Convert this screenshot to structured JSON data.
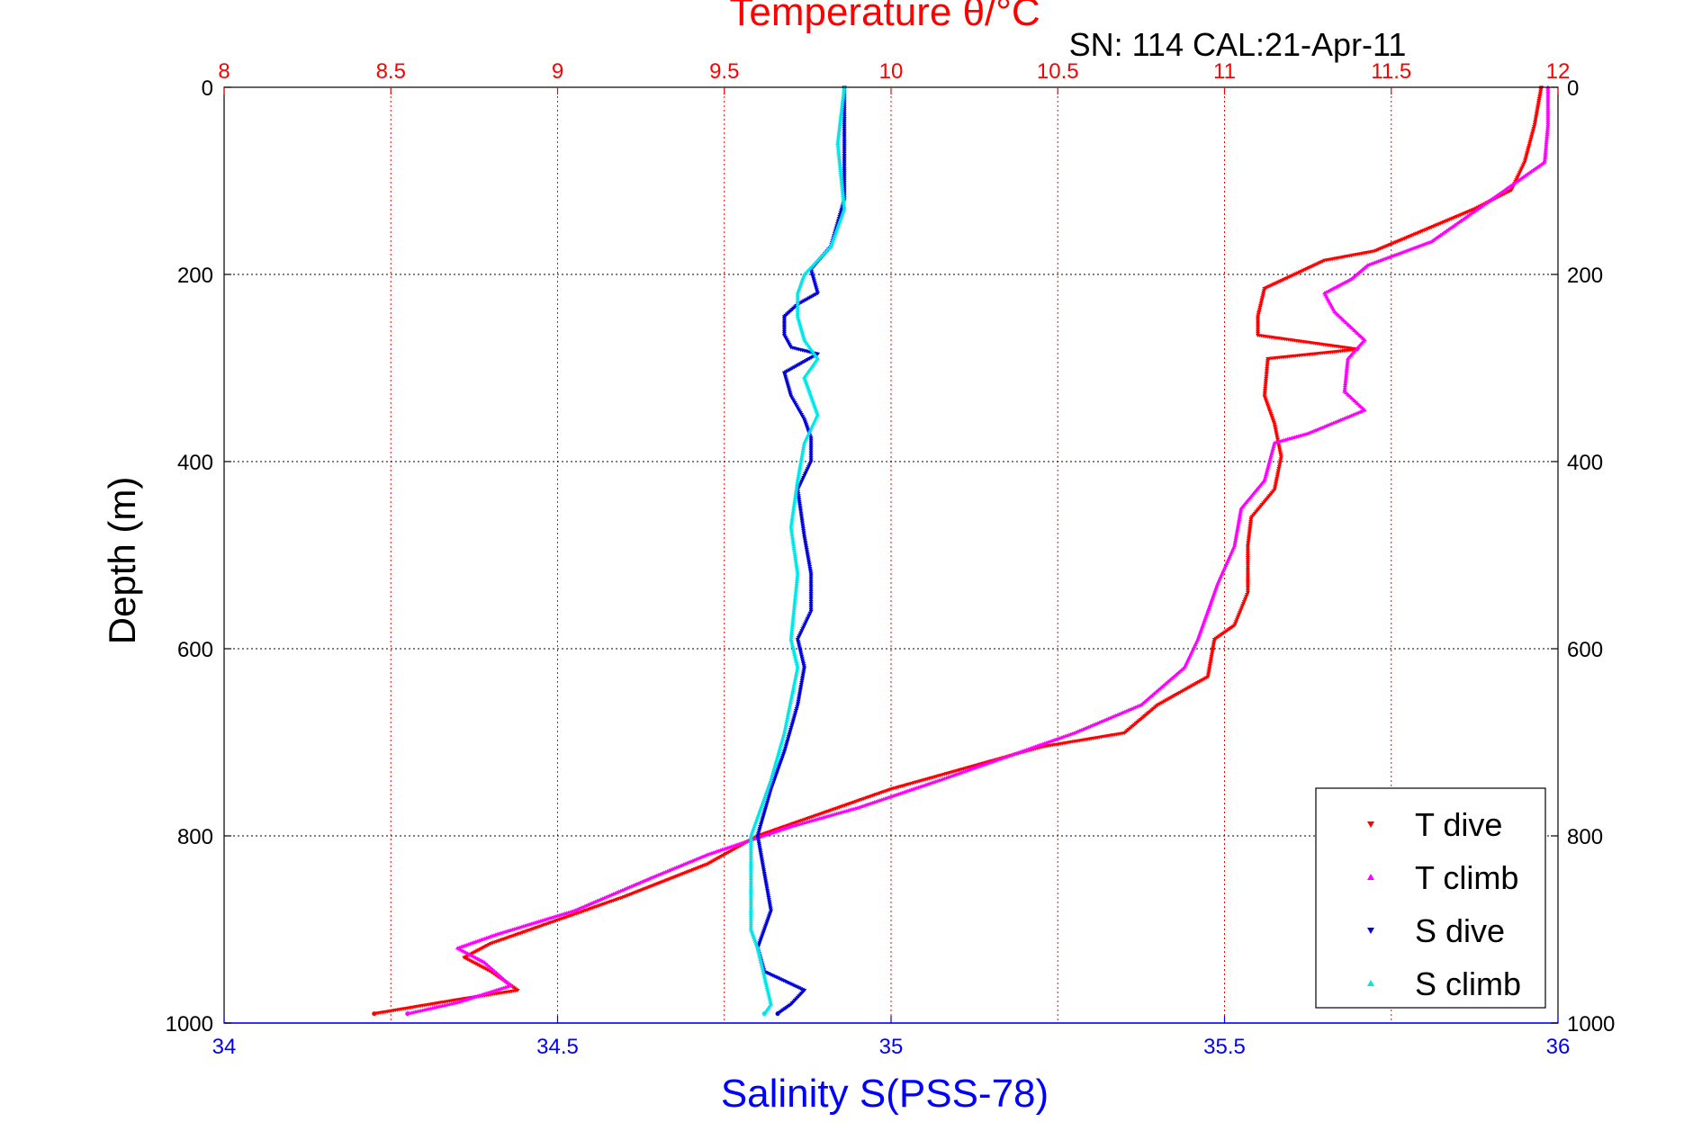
{
  "colors": {
    "t_dive": "#ff0000",
    "t_climb": "#ff00ff",
    "s_dive": "#0000dd",
    "s_climb": "#00e6e6",
    "temp_axis": "#ff0000",
    "sal_axis": "#0000ff",
    "text": "#000000",
    "background": "#ffffff"
  },
  "chart_data": {
    "type": "scatter",
    "title": "Temperature θ/°C",
    "subtitle": "SN: 114  CAL:21-Apr-11",
    "xlabel": "Salinity S(PSS-78)",
    "ylabel": "Depth (m)",
    "grid": true,
    "legend_position": "bottom-right",
    "y_reversed": true,
    "ylim": [
      0,
      1000
    ],
    "y_ticks": [
      "0",
      "200",
      "400",
      "600",
      "800",
      "1000"
    ],
    "temp_axis": {
      "lim": [
        8,
        12
      ],
      "ticks": [
        "8",
        "8.5",
        "9",
        "9.5",
        "10",
        "10.5",
        "11",
        "11.5",
        "12"
      ]
    },
    "sal_axis": {
      "lim": [
        34,
        36
      ],
      "ticks": [
        "34",
        "34.5",
        "35",
        "35.5",
        "36"
      ]
    },
    "series": [
      {
        "name": "T dive",
        "key": "t_dive",
        "axis": "temp",
        "marker": "▾",
        "points": [
          [
            11.95,
            0
          ],
          [
            11.93,
            40
          ],
          [
            11.9,
            80
          ],
          [
            11.86,
            110
          ],
          [
            11.75,
            130
          ],
          [
            11.55,
            160
          ],
          [
            11.45,
            175
          ],
          [
            11.3,
            185
          ],
          [
            11.12,
            215
          ],
          [
            11.1,
            245
          ],
          [
            11.1,
            265
          ],
          [
            11.4,
            280
          ],
          [
            11.13,
            290
          ],
          [
            11.12,
            330
          ],
          [
            11.15,
            360
          ],
          [
            11.17,
            395
          ],
          [
            11.15,
            430
          ],
          [
            11.08,
            460
          ],
          [
            11.07,
            490
          ],
          [
            11.07,
            540
          ],
          [
            11.03,
            575
          ],
          [
            10.97,
            590
          ],
          [
            10.95,
            630
          ],
          [
            10.8,
            660
          ],
          [
            10.7,
            690
          ],
          [
            10.45,
            705
          ],
          [
            10.2,
            730
          ],
          [
            10.0,
            750
          ],
          [
            9.8,
            775
          ],
          [
            9.6,
            800
          ],
          [
            9.45,
            830
          ],
          [
            9.2,
            865
          ],
          [
            9.0,
            890
          ],
          [
            8.8,
            915
          ],
          [
            8.72,
            930
          ],
          [
            8.8,
            945
          ],
          [
            8.88,
            965
          ],
          [
            8.7,
            975
          ],
          [
            8.45,
            990
          ]
        ]
      },
      {
        "name": "T climb",
        "key": "t_climb",
        "axis": "temp",
        "marker": "▴",
        "points": [
          [
            11.97,
            0
          ],
          [
            11.97,
            40
          ],
          [
            11.96,
            80
          ],
          [
            11.8,
            120
          ],
          [
            11.62,
            165
          ],
          [
            11.43,
            190
          ],
          [
            11.38,
            205
          ],
          [
            11.3,
            220
          ],
          [
            11.33,
            240
          ],
          [
            11.42,
            270
          ],
          [
            11.37,
            290
          ],
          [
            11.36,
            325
          ],
          [
            11.42,
            345
          ],
          [
            11.25,
            370
          ],
          [
            11.15,
            380
          ],
          [
            11.12,
            420
          ],
          [
            11.05,
            450
          ],
          [
            11.03,
            490
          ],
          [
            10.98,
            530
          ],
          [
            10.95,
            560
          ],
          [
            10.92,
            590
          ],
          [
            10.88,
            620
          ],
          [
            10.75,
            660
          ],
          [
            10.55,
            690
          ],
          [
            10.35,
            715
          ],
          [
            10.15,
            740
          ],
          [
            9.9,
            770
          ],
          [
            9.7,
            790
          ],
          [
            9.45,
            820
          ],
          [
            9.28,
            845
          ],
          [
            9.05,
            880
          ],
          [
            8.82,
            905
          ],
          [
            8.7,
            920
          ],
          [
            8.78,
            935
          ],
          [
            8.86,
            960
          ],
          [
            8.7,
            978
          ],
          [
            8.55,
            990
          ]
        ]
      },
      {
        "name": "S dive",
        "key": "s_dive",
        "axis": "sal",
        "marker": "▾",
        "points": [
          [
            34.93,
            0
          ],
          [
            34.93,
            50
          ],
          [
            34.93,
            120
          ],
          [
            34.91,
            170
          ],
          [
            34.88,
            195
          ],
          [
            34.89,
            220
          ],
          [
            34.86,
            232
          ],
          [
            34.84,
            245
          ],
          [
            34.84,
            265
          ],
          [
            34.85,
            278
          ],
          [
            34.89,
            285
          ],
          [
            34.84,
            305
          ],
          [
            34.85,
            330
          ],
          [
            34.87,
            355
          ],
          [
            34.88,
            375
          ],
          [
            34.88,
            400
          ],
          [
            34.86,
            430
          ],
          [
            34.87,
            480
          ],
          [
            34.88,
            520
          ],
          [
            34.88,
            560
          ],
          [
            34.86,
            590
          ],
          [
            34.87,
            620
          ],
          [
            34.86,
            660
          ],
          [
            34.84,
            710
          ],
          [
            34.82,
            750
          ],
          [
            34.8,
            800
          ],
          [
            34.81,
            840
          ],
          [
            34.82,
            880
          ],
          [
            34.8,
            920
          ],
          [
            34.81,
            945
          ],
          [
            34.87,
            965
          ],
          [
            34.85,
            980
          ],
          [
            34.83,
            990
          ]
        ]
      },
      {
        "name": "S climb",
        "key": "s_climb",
        "axis": "sal",
        "marker": "▴",
        "points": [
          [
            34.93,
            0
          ],
          [
            34.92,
            60
          ],
          [
            34.93,
            130
          ],
          [
            34.91,
            170
          ],
          [
            34.87,
            200
          ],
          [
            34.86,
            220
          ],
          [
            34.86,
            245
          ],
          [
            34.87,
            270
          ],
          [
            34.89,
            290
          ],
          [
            34.87,
            310
          ],
          [
            34.89,
            350
          ],
          [
            34.87,
            380
          ],
          [
            34.86,
            420
          ],
          [
            34.85,
            470
          ],
          [
            34.86,
            520
          ],
          [
            34.85,
            590
          ],
          [
            34.86,
            620
          ],
          [
            34.84,
            690
          ],
          [
            34.82,
            740
          ],
          [
            34.79,
            800
          ],
          [
            34.79,
            860
          ],
          [
            34.79,
            900
          ],
          [
            34.8,
            920
          ],
          [
            34.81,
            950
          ],
          [
            34.82,
            980
          ],
          [
            34.81,
            990
          ]
        ]
      }
    ]
  }
}
